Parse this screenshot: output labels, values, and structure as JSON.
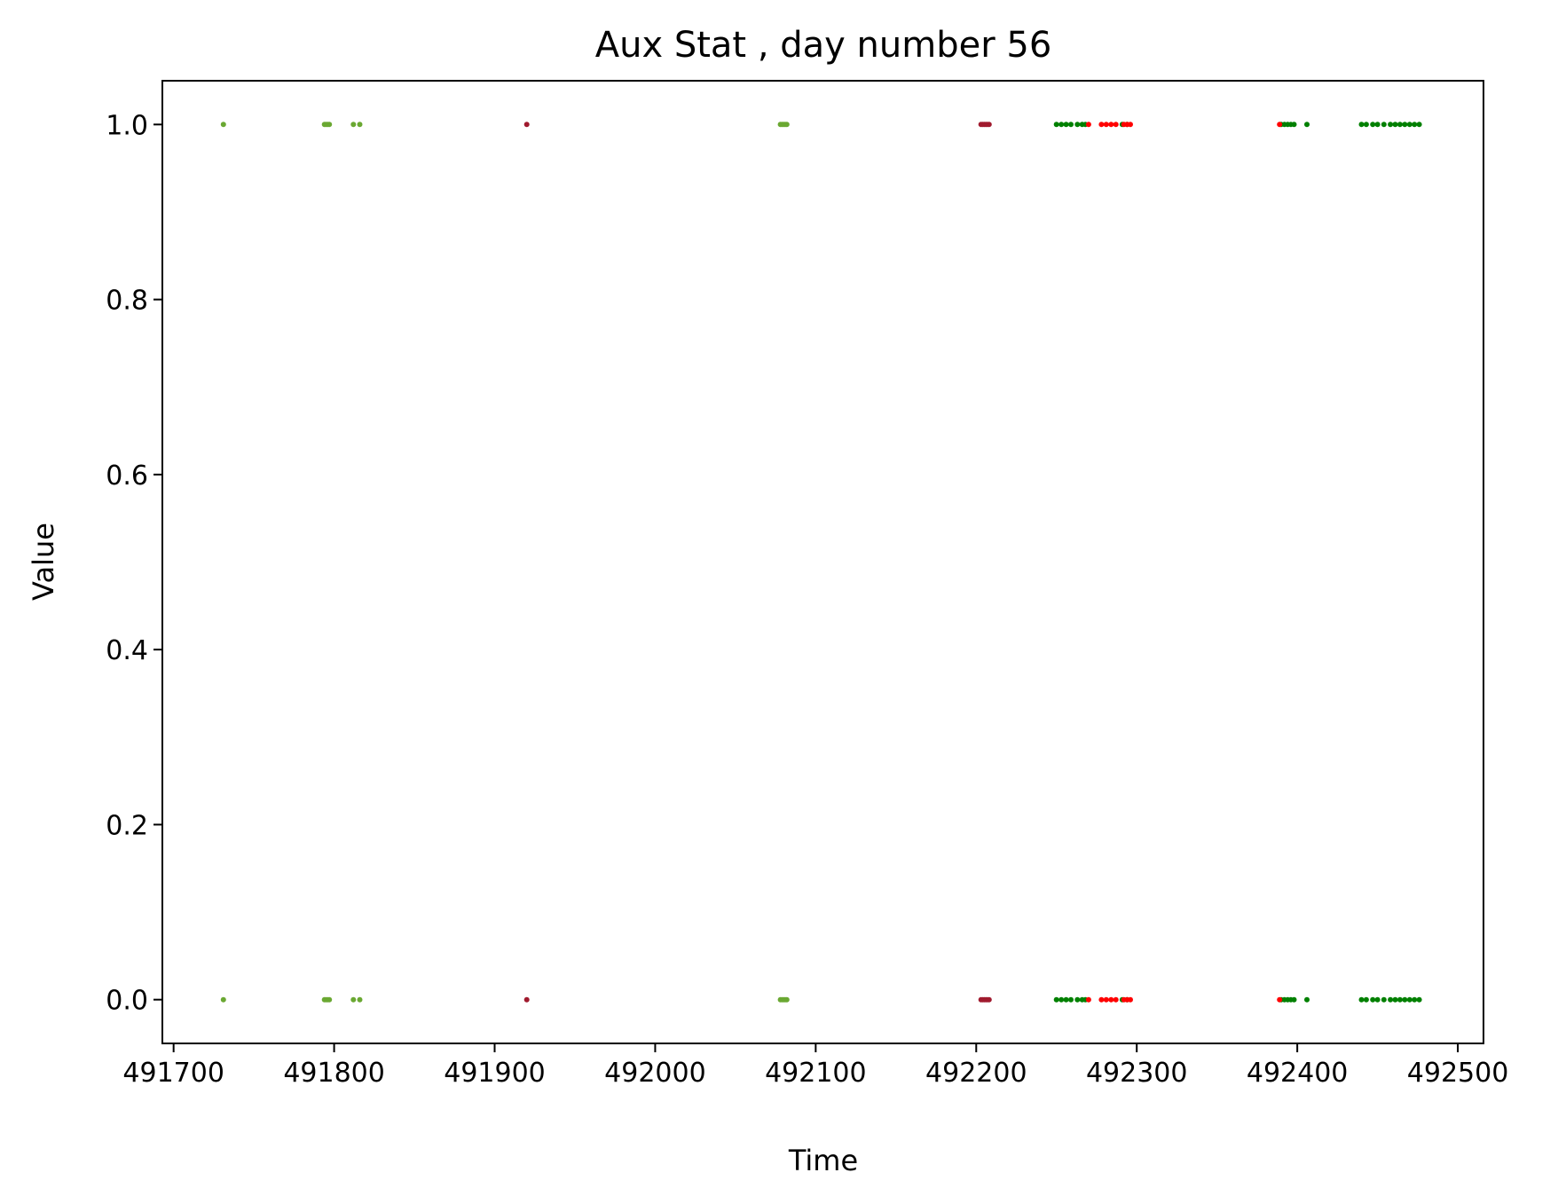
{
  "chart_data": {
    "type": "scatter",
    "title": "Aux Stat , day number 56",
    "xlabel": "Time",
    "ylabel": "Value",
    "xlim": [
      491693,
      492516
    ],
    "ylim": [
      -0.05,
      1.05
    ],
    "xticks": [
      491700,
      491800,
      491900,
      492000,
      492100,
      492200,
      492300,
      492400,
      492500
    ],
    "xtick_labels": [
      "491700",
      "491800",
      "491900",
      "492000",
      "492100",
      "492200",
      "492300",
      "492400",
      "492500"
    ],
    "yticks": [
      0.0,
      0.2,
      0.4,
      0.6,
      0.8,
      1.0
    ],
    "ytick_labels": [
      "0.0",
      "0.2",
      "0.4",
      "0.6",
      "0.8",
      "1.0"
    ],
    "grid": false,
    "legend": "none",
    "series": [
      {
        "color": "#6aa832",
        "x": [
          491731,
          491731,
          491794,
          491794,
          491795,
          491795,
          491796,
          491796,
          491797,
          491797,
          491812,
          491812,
          491816,
          491816,
          492078,
          492078,
          492079,
          492079,
          492080,
          492080,
          492081,
          492081,
          492082,
          492082
        ],
        "y": [
          1,
          0,
          1,
          0,
          1,
          0,
          1,
          0,
          1,
          0,
          1,
          0,
          1,
          0,
          1,
          0,
          1,
          0,
          1,
          0,
          1,
          0,
          1,
          0
        ]
      },
      {
        "color": "#a01a2e",
        "x": [
          491920,
          491920,
          492203,
          492203,
          492204,
          492204,
          492205,
          492205,
          492206,
          492206,
          492207,
          492207,
          492208,
          492208
        ],
        "y": [
          1,
          0,
          1,
          0,
          1,
          0,
          1,
          0,
          1,
          0,
          1,
          0,
          1,
          0
        ]
      },
      {
        "color": "#008000",
        "x": [
          492250,
          492250,
          492253,
          492253,
          492256,
          492256,
          492259,
          492259,
          492263,
          492263,
          492266,
          492266,
          492268,
          492268,
          492291,
          492291,
          492294,
          492294,
          492390,
          492390,
          492392,
          492392,
          492394,
          492394,
          492396,
          492396,
          492398,
          492398,
          492406,
          492406,
          492440,
          492440,
          492443,
          492443,
          492447,
          492447,
          492450,
          492450,
          492454,
          492454,
          492458,
          492458,
          492461,
          492461,
          492464,
          492464,
          492467,
          492467,
          492470,
          492470,
          492473,
          492473,
          492476,
          492476
        ],
        "y": [
          1,
          0,
          1,
          0,
          1,
          0,
          1,
          0,
          1,
          0,
          1,
          0,
          1,
          0,
          1,
          0,
          1,
          0,
          1,
          0,
          1,
          0,
          1,
          0,
          1,
          0,
          1,
          0,
          1,
          0,
          1,
          0,
          1,
          0,
          1,
          0,
          1,
          0,
          1,
          0,
          1,
          0,
          1,
          0,
          1,
          0,
          1,
          0,
          1,
          0,
          1,
          0,
          1,
          0
        ]
      },
      {
        "color": "#ff0000",
        "x": [
          492270,
          492270,
          492278,
          492278,
          492281,
          492281,
          492284,
          492284,
          492287,
          492287,
          492292,
          492292,
          492294,
          492294,
          492296,
          492296,
          492389,
          492389
        ],
        "y": [
          1,
          0,
          1,
          0,
          1,
          0,
          1,
          0,
          1,
          0,
          1,
          0,
          1,
          0,
          1,
          0,
          1,
          0
        ]
      }
    ]
  }
}
